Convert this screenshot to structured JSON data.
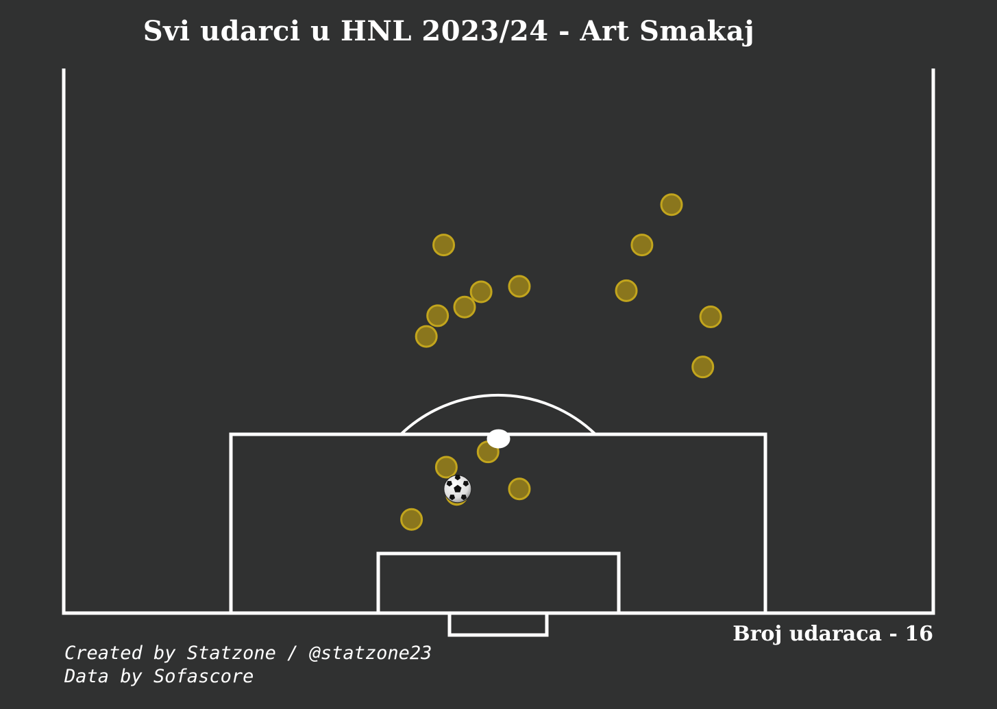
{
  "title": "Svi udarci u HNL 2023/24 - Art Smakaj",
  "shot_count_label": "Broj udaraca - 16",
  "credits": {
    "line1": "Created by Statzone / @statzone23",
    "line2": "Data by Sofascore"
  },
  "colors": {
    "background": "#303131",
    "lines": "#ffffff",
    "shot_fill": "#8f7a1c",
    "shot_stroke": "#c2a51d",
    "goal_fill": "#ffffff"
  },
  "chart_data": {
    "type": "scatter",
    "x_range": [
      0,
      100
    ],
    "y_range": [
      50,
      100
    ],
    "shots": [
      {
        "x": 43.0,
        "y": 77.3
      },
      {
        "x": 41.7,
        "y": 75.4
      },
      {
        "x": 43.7,
        "y": 83.8
      },
      {
        "x": 48.0,
        "y": 79.5
      },
      {
        "x": 46.1,
        "y": 78.1
      },
      {
        "x": 52.4,
        "y": 80.0
      },
      {
        "x": 64.7,
        "y": 79.6
      },
      {
        "x": 66.5,
        "y": 83.8
      },
      {
        "x": 69.9,
        "y": 87.5
      },
      {
        "x": 74.4,
        "y": 77.2
      },
      {
        "x": 73.5,
        "y": 72.6
      },
      {
        "x": 44.0,
        "y": 63.4
      },
      {
        "x": 48.8,
        "y": 64.8
      },
      {
        "x": 52.4,
        "y": 61.4
      },
      {
        "x": 40.0,
        "y": 58.6
      },
      {
        "x": 45.2,
        "y": 60.9
      }
    ],
    "goals": [
      {
        "x": 50.0,
        "y": 66.0
      }
    ],
    "ball_marker": {
      "x": 45.3,
      "y": 61.4
    }
  }
}
